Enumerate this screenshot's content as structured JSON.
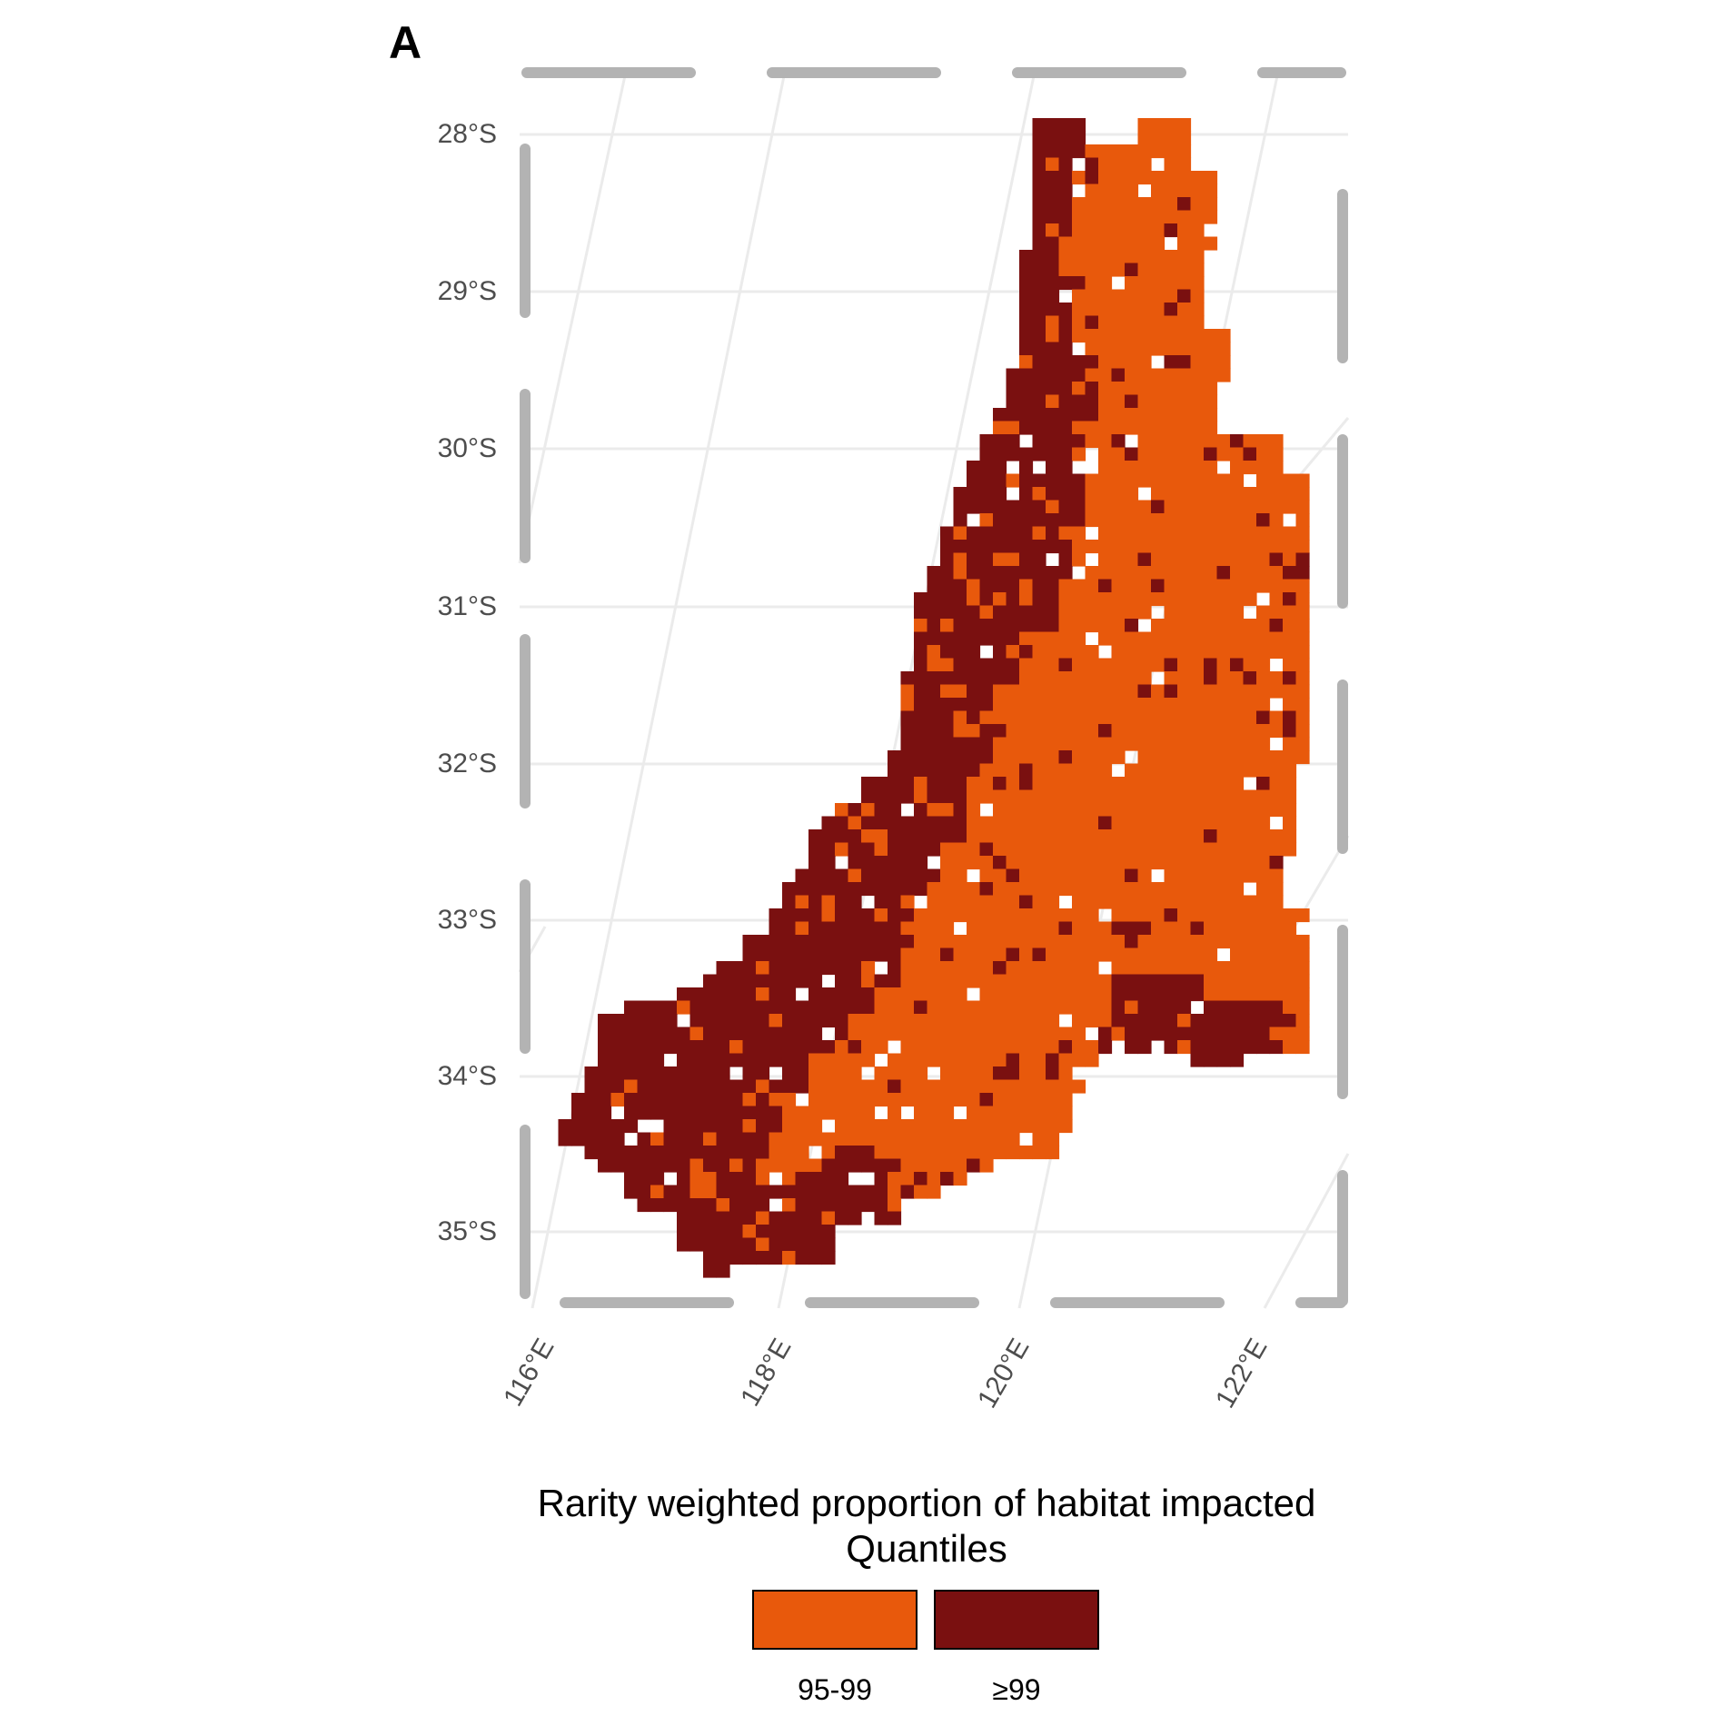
{
  "panel_label": "A",
  "colors": {
    "q95_99": "#e8590c",
    "q99": "#7a1010",
    "grid": "#ebebeb",
    "frame": "#b3b3b3",
    "axis_text": "#4d4d4d"
  },
  "axes": {
    "lat_labels": [
      "28°S",
      "29°S",
      "30°S",
      "31°S",
      "32°S",
      "33°S",
      "34°S",
      "35°S"
    ],
    "lon_labels": [
      "116°E",
      "118°E",
      "120°E",
      "122°E"
    ]
  },
  "legend": {
    "title_line1": "Rarity weighted proportion of habitat impacted",
    "title_line2": "Quantiles",
    "items": [
      {
        "label": "95-99",
        "color": "#e8590c"
      },
      {
        "label": "≥99",
        "color": "#7a1010"
      }
    ]
  },
  "map_data": {
    "type": "raster",
    "lat_range": [
      -35.5,
      -27.6
    ],
    "lon_range": [
      115.9,
      122.6
    ],
    "classes": [
      "95-99",
      "≥99"
    ]
  }
}
